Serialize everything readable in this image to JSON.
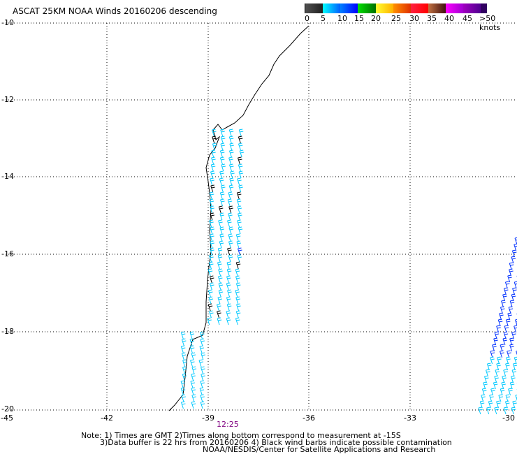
{
  "title": "ASCAT 25KM NOAA Winds 20160206 descending",
  "legend": {
    "labels": [
      "0",
      "5",
      "10",
      "15",
      "20",
      "25",
      "30",
      "35",
      "40",
      "45",
      ">50 knots"
    ],
    "gradients": [
      [
        "#505050",
        "#202020"
      ],
      [
        "#00ffff",
        "#0060ff"
      ],
      [
        "#0080ff",
        "#0000ff"
      ],
      [
        "#00e000",
        "#007000"
      ],
      [
        "#ffff30",
        "#ffb000"
      ],
      [
        "#ff9000",
        "#e03000"
      ],
      [
        "#ff2040",
        "#ff0000"
      ],
      [
        "#c07040",
        "#401010"
      ],
      [
        "#ff00ff",
        "#a000d0"
      ],
      [
        "#a000c0",
        "#500090"
      ],
      [
        "#300060",
        "#300060"
      ]
    ]
  },
  "axes": {
    "lat_labels": [
      "-10",
      "-12",
      "-14",
      "-16",
      "-18",
      "-20"
    ],
    "lon_labels": [
      "-45",
      "-42",
      "-39",
      "-36",
      "-33",
      "-30"
    ]
  },
  "time_label": "12:25",
  "notes": [
    "Note: 1) Times are GMT 2)Times along bottom correspond to measurement at -15S",
    "3)Data buffer is 22 hrs from 20160206 4) Black wind barbs indicate possible contamination",
    "NOAA/NESDIS/Center for Satellite Applications and Research"
  ],
  "colors": {
    "cyan_barb": "#00c8ff",
    "blue_barb": "#0030ff",
    "black_barb": "#000000",
    "time": "#800080"
  }
}
